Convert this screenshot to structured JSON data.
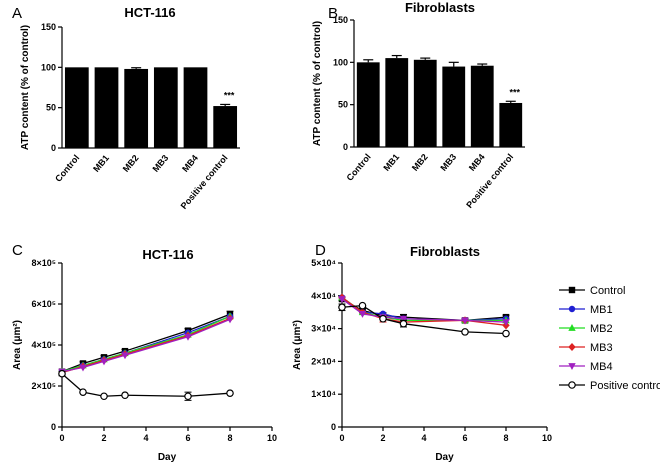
{
  "chart_data": [
    {
      "panel": "A",
      "type": "bar",
      "title": "HCT-116",
      "xlabel": "",
      "ylabel": "ATP content (% of control)",
      "ylim": [
        0,
        150
      ],
      "yticks": [
        0,
        50,
        100,
        150
      ],
      "categories": [
        "Control",
        "MB1",
        "MB2",
        "MB3",
        "MB4",
        "Positive control"
      ],
      "values": [
        100,
        100,
        98,
        100,
        100,
        52
      ],
      "errors": [
        0,
        0,
        1.5,
        0,
        0,
        2
      ],
      "annotations": [
        {
          "category": "Positive control",
          "text": "***"
        }
      ]
    },
    {
      "panel": "B",
      "type": "bar",
      "title": "Fibroblasts",
      "xlabel": "",
      "ylabel": "ATP content (% of control)",
      "ylim": [
        0,
        150
      ],
      "yticks": [
        0,
        50,
        100,
        150
      ],
      "categories": [
        "Control",
        "MB1",
        "MB2",
        "MB3",
        "MB4",
        "Positive control"
      ],
      "values": [
        100,
        105,
        103,
        95,
        96,
        52
      ],
      "errors": [
        3,
        3,
        2,
        5,
        2,
        2
      ],
      "annotations": [
        {
          "category": "Positive control",
          "text": "***"
        }
      ]
    },
    {
      "panel": "C",
      "type": "line",
      "title": "HCT-116",
      "xlabel": "Day",
      "ylabel": "Area (μm²)",
      "xlim": [
        0,
        10
      ],
      "ylim": [
        0,
        800000
      ],
      "xticks": [
        0,
        2,
        4,
        6,
        8,
        10
      ],
      "yticks": [
        0,
        200000,
        400000,
        600000,
        800000
      ],
      "ytick_labels": [
        "0",
        "2×10⁵",
        "4×10⁵",
        "6×10⁵",
        "8×10⁵"
      ],
      "x": [
        0,
        1,
        2,
        3,
        6,
        8
      ],
      "series": [
        {
          "name": "Control",
          "values": [
            270000,
            310000,
            340000,
            370000,
            470000,
            550000
          ],
          "errors": [
            0,
            8000,
            8000,
            8000,
            10000,
            15000
          ]
        },
        {
          "name": "MB1",
          "values": [
            270000,
            300000,
            330000,
            360000,
            460000,
            540000
          ],
          "errors": [
            0,
            0,
            0,
            0,
            0,
            0
          ]
        },
        {
          "name": "MB2",
          "values": [
            270000,
            300000,
            330000,
            360000,
            450000,
            540000
          ],
          "errors": [
            0,
            0,
            0,
            0,
            0,
            0
          ]
        },
        {
          "name": "MB3",
          "values": [
            265000,
            295000,
            325000,
            355000,
            445000,
            530000
          ],
          "errors": [
            0,
            0,
            0,
            0,
            0,
            0
          ]
        },
        {
          "name": "MB4",
          "values": [
            270000,
            290000,
            320000,
            350000,
            440000,
            525000
          ],
          "errors": [
            0,
            0,
            0,
            0,
            0,
            0
          ]
        },
        {
          "name": "Positive control",
          "values": [
            260000,
            170000,
            150000,
            155000,
            150000,
            165000
          ],
          "errors": [
            10000,
            0,
            0,
            0,
            20000,
            0
          ]
        }
      ]
    },
    {
      "panel": "D",
      "type": "line",
      "title": "Fibroblasts",
      "xlabel": "Day",
      "ylabel": "Area (μm²)",
      "xlim": [
        0,
        10
      ],
      "ylim": [
        0,
        50000
      ],
      "xticks": [
        0,
        2,
        4,
        6,
        8,
        10
      ],
      "yticks": [
        0,
        10000,
        20000,
        30000,
        40000,
        50000
      ],
      "ytick_labels": [
        "0",
        "1×10⁴",
        "2×10⁴",
        "3×10⁴",
        "4×10⁴",
        "5×10⁴"
      ],
      "x": [
        0,
        1,
        2,
        3,
        6,
        8
      ],
      "series": [
        {
          "name": "Control",
          "values": [
            39000,
            35500,
            34000,
            33500,
            32500,
            33500
          ],
          "errors": [
            500,
            500,
            800,
            800,
            500,
            600
          ]
        },
        {
          "name": "MB1",
          "values": [
            39500,
            35000,
            34500,
            33000,
            32500,
            33000
          ],
          "errors": [
            0,
            0,
            0,
            0,
            0,
            0
          ]
        },
        {
          "name": "MB2",
          "values": [
            39500,
            35000,
            33500,
            32500,
            32500,
            32500
          ],
          "errors": [
            0,
            0,
            0,
            0,
            0,
            0
          ]
        },
        {
          "name": "MB3",
          "values": [
            39500,
            35000,
            33000,
            32000,
            32500,
            31000
          ],
          "errors": [
            0,
            0,
            1000,
            0,
            0,
            0
          ]
        },
        {
          "name": "MB4",
          "values": [
            39000,
            34500,
            33500,
            33000,
            32500,
            32000
          ],
          "errors": [
            0,
            0,
            0,
            0,
            0,
            0
          ]
        },
        {
          "name": "Positive control",
          "values": [
            36500,
            37000,
            33000,
            31500,
            29000,
            28500
          ],
          "errors": [
            1000,
            0,
            0,
            1000,
            0,
            0
          ]
        }
      ]
    }
  ],
  "legend": {
    "placement": "right",
    "items": [
      {
        "name": "Control",
        "color": "#000000",
        "marker": "square"
      },
      {
        "name": "MB1",
        "color": "#1f1fd2",
        "marker": "circle"
      },
      {
        "name": "MB2",
        "color": "#22dd22",
        "marker": "triangle-up"
      },
      {
        "name": "MB3",
        "color": "#dd2222",
        "marker": "diamond"
      },
      {
        "name": "MB4",
        "color": "#a020c0",
        "marker": "triangle-down"
      },
      {
        "name": "Positive control",
        "color": "#000000",
        "marker": "open-circle"
      }
    ]
  }
}
